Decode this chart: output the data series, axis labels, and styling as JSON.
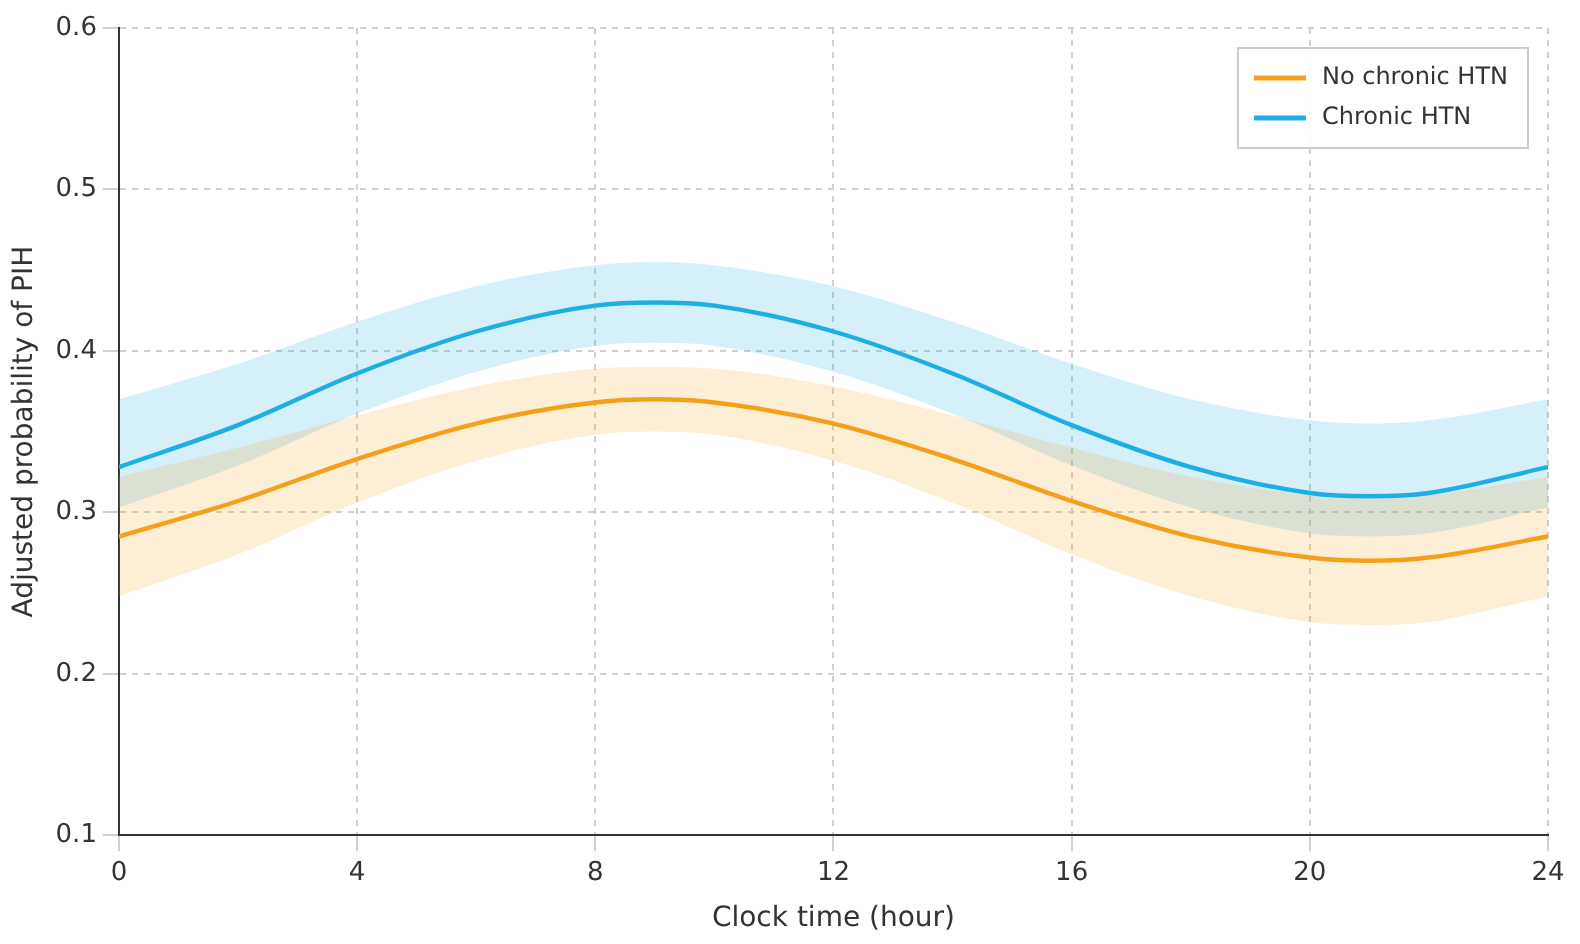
{
  "chart_data": {
    "type": "line",
    "xlabel": "Clock time (hour)",
    "ylabel": "Adjusted probability of PIH",
    "x": [
      0,
      2,
      4,
      6,
      8,
      9,
      10,
      12,
      14,
      16,
      18,
      20,
      21,
      22,
      24
    ],
    "series": [
      {
        "name": "No chronic HTN",
        "color": "#f5a01a",
        "values": [
          0.285,
          0.307,
          0.333,
          0.355,
          0.368,
          0.37,
          0.368,
          0.355,
          0.333,
          0.307,
          0.285,
          0.272,
          0.27,
          0.272,
          0.285
        ],
        "lower": [
          0.248,
          0.274,
          0.306,
          0.332,
          0.348,
          0.35,
          0.348,
          0.332,
          0.306,
          0.274,
          0.248,
          0.232,
          0.23,
          0.232,
          0.248
        ],
        "upper": [
          0.322,
          0.34,
          0.36,
          0.378,
          0.389,
          0.39,
          0.389,
          0.378,
          0.36,
          0.34,
          0.322,
          0.311,
          0.31,
          0.311,
          0.322
        ]
      },
      {
        "name": "Chronic HTN",
        "color": "#1eaee6",
        "values": [
          0.328,
          0.354,
          0.386,
          0.412,
          0.428,
          0.43,
          0.428,
          0.412,
          0.386,
          0.354,
          0.328,
          0.312,
          0.31,
          0.312,
          0.328
        ],
        "lower": [
          0.303,
          0.329,
          0.361,
          0.387,
          0.403,
          0.405,
          0.403,
          0.387,
          0.361,
          0.329,
          0.303,
          0.287,
          0.285,
          0.287,
          0.303
        ],
        "upper": [
          0.37,
          0.392,
          0.418,
          0.44,
          0.453,
          0.455,
          0.453,
          0.44,
          0.418,
          0.392,
          0.37,
          0.357,
          0.355,
          0.357,
          0.37
        ]
      }
    ],
    "xlim": [
      0,
      24
    ],
    "xticks": [
      0,
      4,
      8,
      12,
      16,
      20,
      24
    ],
    "ylim": [
      0.1,
      0.6
    ],
    "yticks": [
      0.1,
      0.2,
      0.3,
      0.4,
      0.5,
      0.6
    ],
    "grid": true,
    "legend": "top right",
    "marker": "none",
    "line_style": "solid"
  }
}
